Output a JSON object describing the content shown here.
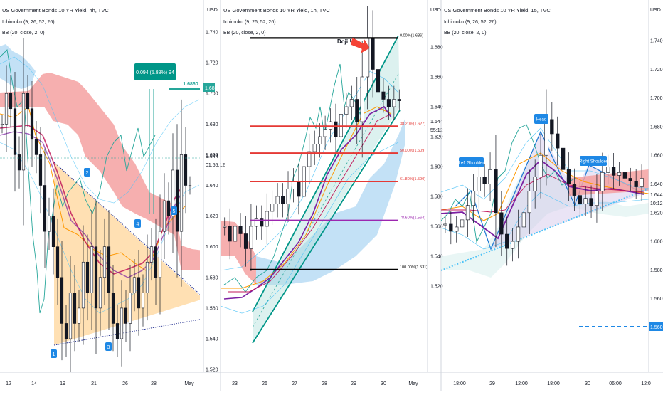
{
  "colors": {
    "cloud_bull": "#b9dcf4",
    "cloud_bear": "#f4a1a1",
    "tenkan": "#2196f3",
    "kijun": "#c2185b",
    "lagging": "#26a69a",
    "bb_basis": "#ff9800",
    "triangle_fill": "#ffcc80",
    "channel": "#009688",
    "fib_line": "#e53935",
    "fib_purple": "#9c27b0",
    "callout": "#1e88e5",
    "price_flag": "#26a69a",
    "axis_text": "#131722"
  },
  "panels": [
    {
      "title": "US Government Bonds 10 YR Yield, 4h, TVC",
      "indicators": [
        "Ichimoku (9, 26, 52, 26)",
        "BB (20, close, 2, 0)"
      ],
      "currency": "USD",
      "x_ticks": [
        "12",
        "14",
        "19",
        "21",
        "26",
        "28",
        "May"
      ],
      "y_ticks": [
        "1.740",
        "1.720",
        "1.700",
        "1.680",
        "1.660",
        "1.640",
        "1.620",
        "1.600",
        "1.580",
        "1.560",
        "1.540",
        "1.520"
      ],
      "last_price": "1.644",
      "countdown": "01:55:12",
      "measure_label": "0.094 (5.88%) 94",
      "level_label": "1.6860",
      "level_tag": "1.686",
      "markers": [
        "1",
        "2",
        "3",
        "4",
        "5"
      ]
    },
    {
      "title": "US Government Bonds 10 YR Yield, 1h, TVC",
      "indicators": [
        "Ichimoku (9, 26, 52, 26)",
        "BB (20, close, 2, 0)"
      ],
      "currency": "USD",
      "x_ticks": [
        "23",
        "26",
        "27",
        "28",
        "29",
        "30",
        "May"
      ],
      "y_ticks": [
        "1.680",
        "1.660",
        "1.640",
        "1.620",
        "1.600",
        "1.580",
        "1.560",
        "1.540",
        "1.520"
      ],
      "last_price": "1.644",
      "countdown": "55:12",
      "doji_label": "Doji !",
      "fib_levels": [
        {
          "label": "0.00%(1.686)",
          "value": 1.686
        },
        {
          "label": "38.20%(1.627)",
          "value": 1.627
        },
        {
          "label": "50.00%(1.609)",
          "value": 1.609
        },
        {
          "label": "61.80%(1.590)",
          "value": 1.59
        },
        {
          "label": "78.60%(1.564)",
          "value": 1.564
        },
        {
          "label": "100.00%(1.531)",
          "value": 1.531
        }
      ]
    },
    {
      "title": "US Government Bonds 10 YR Yield, 15, TVC",
      "indicators": [
        "Ichimoku (9, 26, 52, 26)",
        "BB (20, close, 2, 0)"
      ],
      "currency": "USD",
      "x_ticks": [
        "18:00",
        "29",
        "12:00",
        "18:00",
        "30",
        "06:00",
        "12:0"
      ],
      "y_ticks": [
        "1.740",
        "1.720",
        "1.700",
        "1.680",
        "1.660",
        "1.640",
        "1.620",
        "1.600",
        "1.580",
        "1.560"
      ],
      "last_price": "1.644",
      "countdown": "10:12",
      "pattern_labels": [
        "Left Shoulder",
        "Head",
        "Right Shoulder"
      ],
      "level_tag": "1.560"
    }
  ],
  "chart_data": [
    {
      "type": "candlestick",
      "interval": "4h",
      "x_ticks": [
        "12",
        "14",
        "19",
        "21",
        "26",
        "28",
        "May"
      ],
      "y_range": [
        1.515,
        1.745
      ],
      "close_path": [
        1.68,
        1.7,
        1.69,
        1.66,
        1.65,
        1.7,
        1.69,
        1.67,
        1.66,
        1.64,
        1.61,
        1.62,
        1.6,
        1.58,
        1.55,
        1.54,
        1.57,
        1.55,
        1.56,
        1.59,
        1.57,
        1.6,
        1.56,
        1.58,
        1.6,
        1.57,
        1.55,
        1.54,
        1.56,
        1.55,
        1.57,
        1.58,
        1.56,
        1.57,
        1.59,
        1.6,
        1.58,
        1.61,
        1.63,
        1.62,
        1.65,
        1.61,
        1.66,
        1.64,
        1.64
      ],
      "annotations": {
        "measure": "0.094 (5.88%) 94",
        "resistance": 1.686
      }
    },
    {
      "type": "candlestick",
      "interval": "1h",
      "x_ticks": [
        "23",
        "26",
        "27",
        "28",
        "29",
        "30",
        "May"
      ],
      "y_range": [
        1.515,
        1.695
      ],
      "close_path": [
        1.56,
        1.55,
        1.56,
        1.555,
        1.545,
        1.56,
        1.565,
        1.56,
        1.57,
        1.575,
        1.58,
        1.575,
        1.585,
        1.59,
        1.58,
        1.6,
        1.61,
        1.615,
        1.62,
        1.625,
        1.63,
        1.62,
        1.635,
        1.64,
        1.645,
        1.63,
        1.66,
        1.686,
        1.665,
        1.65,
        1.645,
        1.64,
        1.645,
        1.644
      ],
      "fib_levels": [
        1.686,
        1.627,
        1.609,
        1.59,
        1.564,
        1.531
      ]
    },
    {
      "type": "candlestick",
      "interval": "15m",
      "x_ticks": [
        "18:00",
        "29",
        "12:00",
        "18:00",
        "30",
        "06:00",
        "12:0"
      ],
      "y_range": [
        1.545,
        1.745
      ],
      "close_path": [
        1.612,
        1.607,
        1.61,
        1.615,
        1.625,
        1.635,
        1.645,
        1.64,
        1.65,
        1.62,
        1.605,
        1.595,
        1.6,
        1.61,
        1.62,
        1.635,
        1.645,
        1.66,
        1.685,
        1.675,
        1.665,
        1.65,
        1.64,
        1.632,
        1.626,
        1.63,
        1.625,
        1.635,
        1.648,
        1.652,
        1.646,
        1.648,
        1.644,
        1.642,
        1.638,
        1.644
      ],
      "pattern": [
        "Left Shoulder",
        "Head",
        "Right Shoulder"
      ],
      "target": 1.56
    }
  ]
}
